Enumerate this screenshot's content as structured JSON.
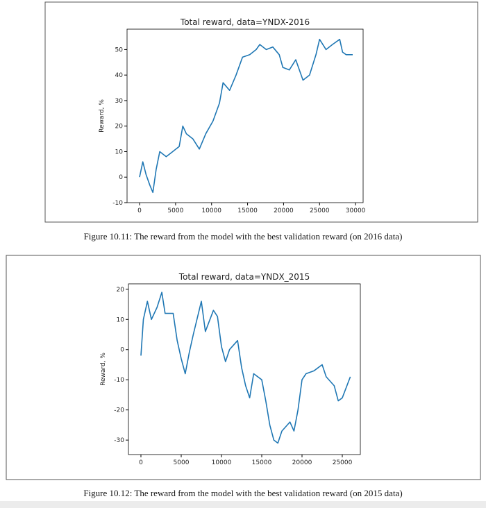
{
  "chart_data": [
    {
      "type": "line",
      "title": "Total reward, data=YNDX-2016",
      "ylabel": "Reward, %",
      "color": "#1f77b4",
      "x": [
        0,
        450,
        900,
        1400,
        1850,
        2300,
        2800,
        3700,
        4600,
        5500,
        6000,
        6500,
        7400,
        8300,
        9200,
        10200,
        11100,
        11600,
        12500,
        13400,
        14300,
        15300,
        16200,
        16700,
        17600,
        18500,
        19400,
        19900,
        20800,
        21700,
        22700,
        23600,
        24500,
        25000,
        25900,
        26800,
        27800,
        28200,
        28700,
        29600
      ],
      "values": [
        0,
        6,
        1,
        -3,
        -6,
        3,
        10,
        8,
        10,
        12,
        20,
        17,
        15,
        11,
        17,
        22,
        29,
        37,
        34,
        40,
        47,
        48,
        50,
        52,
        50,
        51,
        48,
        43,
        42,
        46,
        38,
        40,
        48,
        54,
        50,
        52,
        54,
        49,
        48,
        48
      ],
      "xlim": [
        -1740,
        31050
      ],
      "ylim": [
        -10,
        58
      ],
      "xticks": [
        0,
        5000,
        10000,
        15000,
        20000,
        25000,
        30000
      ],
      "yticks": [
        -10,
        0,
        10,
        20,
        30,
        40,
        50
      ]
    },
    {
      "type": "line",
      "title": "Total reward, data=YNDX_2015",
      "ylabel": "Reward, %",
      "color": "#1f77b4",
      "x": [
        0,
        300,
        800,
        1300,
        2000,
        2600,
        3000,
        4000,
        4500,
        5000,
        5500,
        6000,
        6500,
        7500,
        8000,
        9000,
        9500,
        10000,
        10500,
        11000,
        12000,
        12500,
        13000,
        13500,
        14000,
        15000,
        15500,
        16000,
        16500,
        17000,
        17500,
        18500,
        19000,
        19500,
        20000,
        20500,
        21500,
        22500,
        23000,
        24000,
        24500,
        25000,
        26000
      ],
      "values": [
        -2,
        10,
        16,
        10,
        14,
        19,
        12,
        12,
        3,
        -3,
        -8,
        -1,
        5,
        16,
        6,
        13,
        11,
        1,
        -4,
        0,
        3,
        -6,
        -12,
        -16,
        -8,
        -10,
        -17,
        -25,
        -30,
        -31,
        -27,
        -24,
        -27,
        -20,
        -10,
        -8,
        -7,
        -5,
        -9,
        -12,
        -17,
        -16,
        -9
      ],
      "xlim": [
        -1550,
        27240
      ],
      "ylim": [
        -34.8,
        21.8
      ],
      "xticks": [
        0,
        5000,
        10000,
        15000,
        20000,
        25000
      ],
      "yticks": [
        -30,
        -20,
        -10,
        0,
        10,
        20
      ]
    }
  ],
  "captions": [
    "Figure 10.11: The reward from the model with the best validation reward (on 2016 data)",
    "Figure 10.12: The reward from the model with the best validation reward (on 2015 data)"
  ]
}
